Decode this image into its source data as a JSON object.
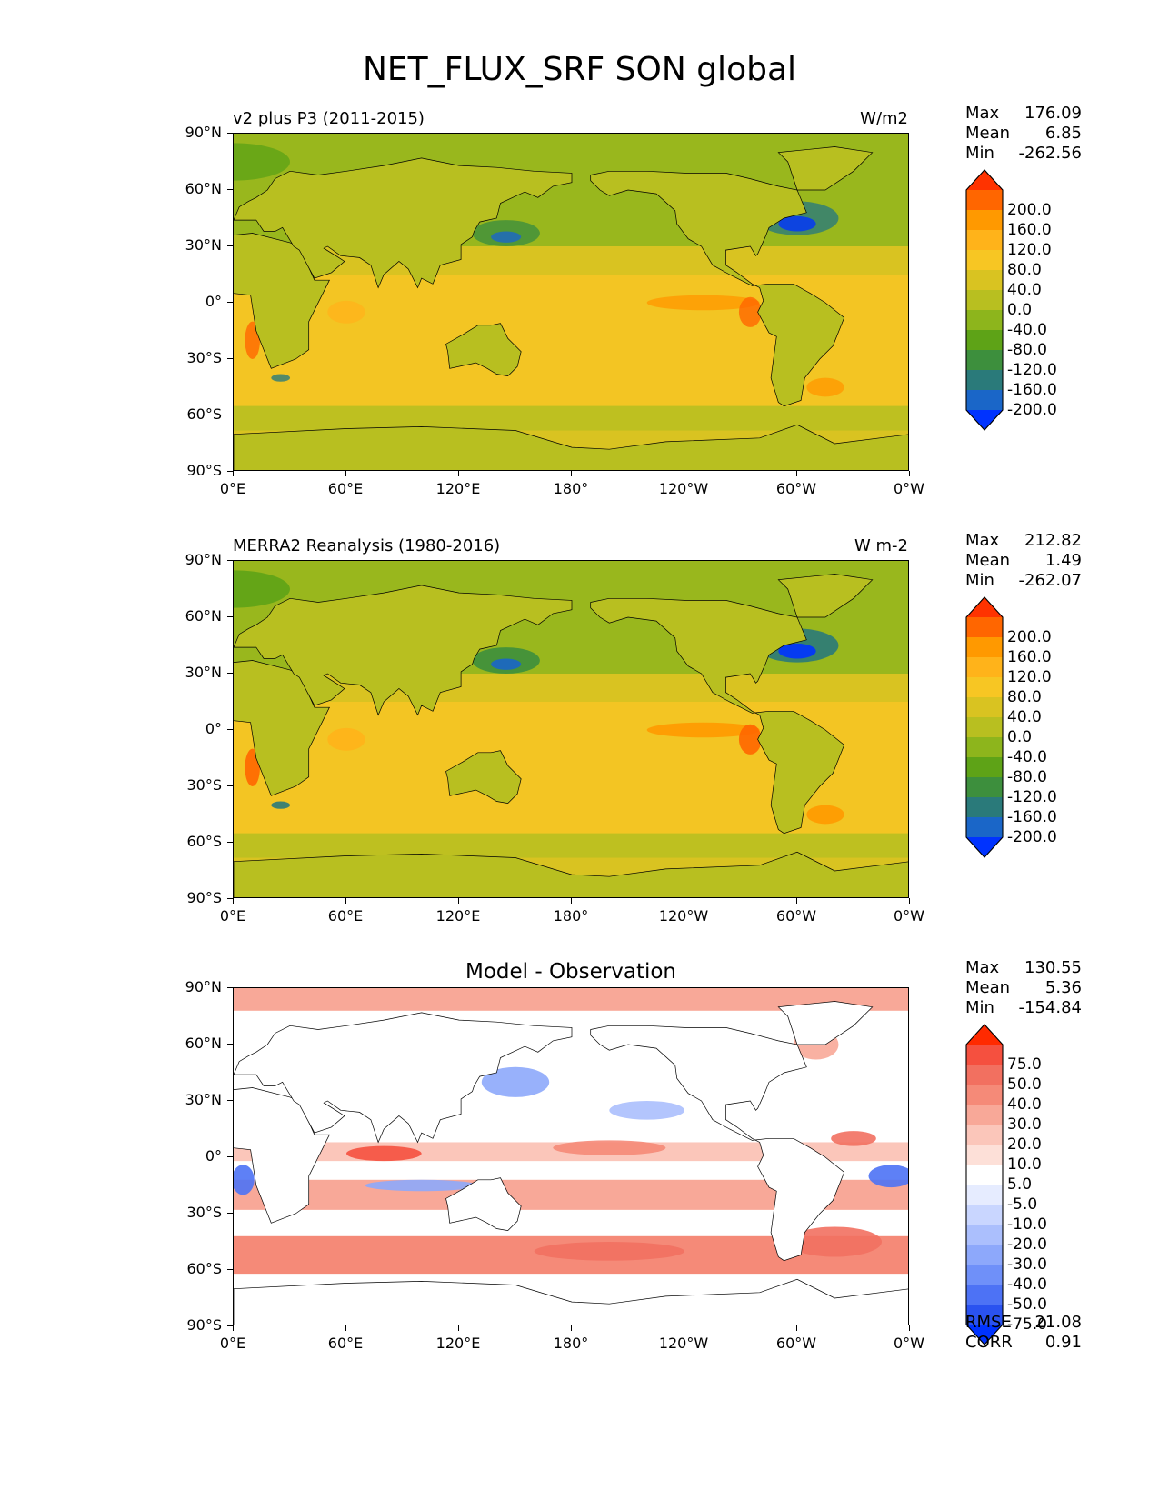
{
  "figure": {
    "title": "NET_FLUX_SRF SON global"
  },
  "axes": {
    "lat_labels": [
      "90°N",
      "60°N",
      "30°N",
      "0°",
      "30°S",
      "60°S",
      "90°S"
    ],
    "lon_labels": [
      "0°E",
      "60°E",
      "120°E",
      "180°",
      "120°W",
      "60°W",
      "0°W"
    ]
  },
  "colorbars": {
    "absolute": {
      "labels": [
        "200.0",
        "160.0",
        "120.0",
        "80.0",
        "40.0",
        "0.0",
        "-40.0",
        "-80.0",
        "-120.0",
        "-160.0",
        "-200.0"
      ],
      "colors": [
        "#ff3300",
        "#ff6600",
        "#ff9900",
        "#ffb31a",
        "#f7c623",
        "#d9c321",
        "#b8bf20",
        "#8db51c",
        "#5ea317",
        "#3d8f3d",
        "#2a7a7a",
        "#1a66c8",
        "#0033ff"
      ]
    },
    "difference": {
      "labels": [
        "75.0",
        "50.0",
        "40.0",
        "30.0",
        "20.0",
        "10.0",
        "5.0",
        "-5.0",
        "-10.0",
        "-20.0",
        "-30.0",
        "-40.0",
        "-50.0",
        "-75.0"
      ],
      "colors": [
        "#ff2a00",
        "#f5503f",
        "#f27060",
        "#f58a78",
        "#f8a898",
        "#fbc6ba",
        "#fde0d8",
        "#ffffff",
        "#e6ecff",
        "#c9d6ff",
        "#abbffd",
        "#8da8fb",
        "#6f90f9",
        "#4d72f5",
        "#2a52f0",
        "#0033ff"
      ]
    }
  },
  "panels": [
    {
      "title_left": "v2 plus P3 (2011-2015)",
      "title_right": "W/m2",
      "title_center": "",
      "stats": {
        "max_label": "Max",
        "max": "176.09",
        "mean_label": "Mean",
        "mean": "6.85",
        "min_label": "Min",
        "min": "-262.56"
      },
      "colorbar": "absolute",
      "field": "model"
    },
    {
      "title_left": "MERRA2 Reanalysis (1980-2016)",
      "title_right": "W m-2",
      "title_center": "",
      "stats": {
        "max_label": "Max",
        "max": "212.82",
        "mean_label": "Mean",
        "mean": "1.49",
        "min_label": "Min",
        "min": "-262.07"
      },
      "colorbar": "absolute",
      "field": "obs"
    },
    {
      "title_left": "",
      "title_right": "",
      "title_center": "Model - Observation",
      "stats": {
        "max_label": "Max",
        "max": "130.55",
        "mean_label": "Mean",
        "mean": "5.36",
        "min_label": "Min",
        "min": "-154.84"
      },
      "colorbar": "difference",
      "field": "diff",
      "footer": {
        "rmse_label": "RMSE",
        "rmse": "21.08",
        "corr_label": "CORR",
        "corr": "0.91"
      }
    }
  ]
}
